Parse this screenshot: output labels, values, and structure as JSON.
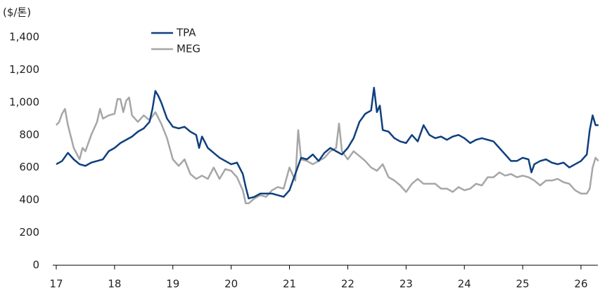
{
  "chart_data": {
    "type": "line",
    "y_unit_label": "($/톤)",
    "xlim": [
      16.94,
      26.29
    ],
    "xticks": [
      17,
      18,
      19,
      20,
      21,
      22,
      23,
      24,
      25,
      26
    ],
    "ylim": [
      0,
      1400
    ],
    "yticks": [
      0,
      200,
      400,
      600,
      800,
      {
        "value": 1000,
        "label": "1,000"
      },
      {
        "value": 1200,
        "label": "1,200"
      },
      {
        "value": 1400,
        "label": "1,400"
      }
    ],
    "grid": false,
    "series": [
      {
        "name": "TPA",
        "color": "#0f3f7f",
        "x": [
          17.0,
          17.1,
          17.2,
          17.3,
          17.4,
          17.5,
          17.6,
          17.7,
          17.8,
          17.9,
          18.0,
          18.1,
          18.2,
          18.3,
          18.4,
          18.5,
          18.6,
          18.65,
          18.7,
          18.75,
          18.8,
          18.9,
          19.0,
          19.1,
          19.2,
          19.3,
          19.4,
          19.45,
          19.5,
          19.6,
          19.7,
          19.8,
          19.9,
          20.0,
          20.1,
          20.2,
          20.25,
          20.3,
          20.4,
          20.5,
          20.6,
          20.7,
          20.8,
          20.9,
          21.0,
          21.1,
          21.2,
          21.3,
          21.4,
          21.5,
          21.6,
          21.7,
          21.8,
          21.9,
          22.0,
          22.1,
          22.2,
          22.3,
          22.4,
          22.45,
          22.5,
          22.55,
          22.6,
          22.7,
          22.8,
          22.9,
          23.0,
          23.1,
          23.2,
          23.3,
          23.4,
          23.5,
          23.6,
          23.7,
          23.8,
          23.9,
          24.0,
          24.1,
          24.2,
          24.3,
          24.4,
          24.5,
          24.6,
          24.7,
          24.8,
          24.9,
          25.0,
          25.1,
          25.15,
          25.2,
          25.3,
          25.4,
          25.5,
          25.6,
          25.7,
          25.8,
          25.9,
          26.0,
          26.1,
          26.15,
          26.2,
          26.25,
          26.3
        ],
        "values": [
          620,
          640,
          690,
          650,
          620,
          610,
          630,
          640,
          650,
          700,
          720,
          750,
          770,
          790,
          820,
          840,
          880,
          960,
          1070,
          1040,
          1000,
          900,
          850,
          840,
          850,
          820,
          800,
          720,
          790,
          720,
          690,
          660,
          640,
          620,
          630,
          560,
          480,
          410,
          420,
          440,
          440,
          440,
          430,
          420,
          460,
          560,
          660,
          650,
          680,
          640,
          690,
          720,
          700,
          680,
          720,
          780,
          880,
          930,
          950,
          1090,
          940,
          980,
          830,
          820,
          780,
          760,
          750,
          800,
          760,
          860,
          800,
          780,
          790,
          770,
          790,
          800,
          780,
          750,
          770,
          780,
          770,
          760,
          720,
          680,
          640,
          640,
          660,
          650,
          570,
          620,
          640,
          650,
          630,
          620,
          630,
          600,
          620,
          640,
          680,
          830,
          920,
          860,
          860
        ]
      },
      {
        "name": "MEG",
        "color": "#a6a6a6",
        "x": [
          17.0,
          17.05,
          17.1,
          17.15,
          17.2,
          17.3,
          17.4,
          17.45,
          17.5,
          17.6,
          17.7,
          17.75,
          17.8,
          17.9,
          18.0,
          18.05,
          18.1,
          18.15,
          18.2,
          18.25,
          18.3,
          18.35,
          18.4,
          18.5,
          18.6,
          18.7,
          18.8,
          18.9,
          19.0,
          19.1,
          19.2,
          19.3,
          19.4,
          19.5,
          19.6,
          19.7,
          19.8,
          19.9,
          20.0,
          20.1,
          20.2,
          20.25,
          20.3,
          20.4,
          20.5,
          20.6,
          20.7,
          20.8,
          20.9,
          21.0,
          21.1,
          21.15,
          21.2,
          21.3,
          21.4,
          21.5,
          21.6,
          21.7,
          21.8,
          21.85,
          21.9,
          22.0,
          22.1,
          22.2,
          22.3,
          22.4,
          22.5,
          22.6,
          22.7,
          22.8,
          22.9,
          23.0,
          23.1,
          23.2,
          23.3,
          23.4,
          23.5,
          23.6,
          23.7,
          23.8,
          23.9,
          24.0,
          24.1,
          24.2,
          24.3,
          24.4,
          24.5,
          24.6,
          24.7,
          24.8,
          24.9,
          25.0,
          25.1,
          25.2,
          25.3,
          25.4,
          25.5,
          25.6,
          25.7,
          25.8,
          25.9,
          26.0,
          26.1,
          26.15,
          26.2,
          26.25,
          26.3
        ],
        "values": [
          860,
          880,
          930,
          960,
          860,
          720,
          650,
          720,
          700,
          800,
          880,
          960,
          900,
          920,
          930,
          1020,
          1020,
          940,
          1010,
          1030,
          920,
          900,
          880,
          920,
          890,
          940,
          870,
          780,
          650,
          610,
          650,
          560,
          530,
          550,
          530,
          600,
          530,
          590,
          580,
          540,
          460,
          380,
          380,
          410,
          430,
          420,
          460,
          480,
          470,
          600,
          520,
          830,
          650,
          640,
          620,
          640,
          660,
          700,
          720,
          870,
          700,
          650,
          700,
          670,
          640,
          600,
          580,
          620,
          540,
          520,
          490,
          450,
          500,
          530,
          500,
          500,
          500,
          470,
          470,
          450,
          480,
          460,
          470,
          500,
          490,
          540,
          540,
          570,
          550,
          560,
          540,
          550,
          540,
          520,
          490,
          520,
          520,
          530,
          510,
          500,
          460,
          440,
          440,
          470,
          600,
          660,
          640
        ]
      }
    ]
  }
}
